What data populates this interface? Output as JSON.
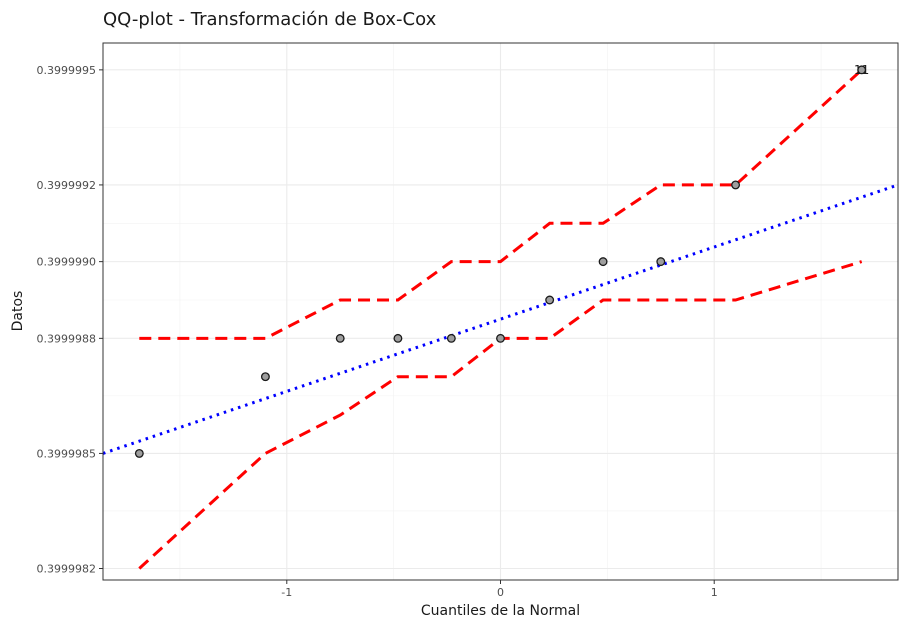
{
  "chart_data": {
    "type": "scatter",
    "title": "QQ-plot - Transformación de Box-Cox",
    "xlabel": "Cuantiles de la Normal",
    "ylabel": "Datos",
    "xlim": [
      -1.86,
      1.86
    ],
    "ylim": [
      0.39999817,
      0.39999957
    ],
    "x_ticks": [
      -1,
      0,
      1
    ],
    "x_tick_labels": [
      "-1",
      "0",
      "1"
    ],
    "y_ticks": [
      0.3999982,
      0.3999985,
      0.3999988,
      0.399999,
      0.3999992,
      0.3999995
    ],
    "y_tick_labels": [
      "0.3999982",
      "0.3999985",
      "0.3999988",
      "0.3999990",
      "0.3999992",
      "0.3999995"
    ],
    "grid": true,
    "points": {
      "x": [
        -1.69,
        -1.1,
        -0.75,
        -0.48,
        -0.23,
        0.0,
        0.23,
        0.48,
        0.75,
        1.1,
        1.69
      ],
      "y": [
        0.3999985,
        0.3999987,
        0.3999988,
        0.3999988,
        0.3999988,
        0.3999988,
        0.3999989,
        0.399999,
        0.399999,
        0.3999992,
        0.3999995
      ],
      "color": "#9e9e9e",
      "stroke": "#1a1a1a"
    },
    "reference_line": {
      "x": [
        -1.86,
        1.86
      ],
      "y": [
        0.3999985,
        0.3999992
      ],
      "color": "#0000ff",
      "style": "dotted"
    },
    "envelope_upper": {
      "x": [
        -1.69,
        -1.1,
        -0.75,
        -0.48,
        -0.23,
        0.0,
        0.23,
        0.48,
        0.75,
        1.1,
        1.69
      ],
      "y": [
        0.3999988,
        0.3999988,
        0.3999989,
        0.3999989,
        0.399999,
        0.399999,
        0.3999991,
        0.3999991,
        0.3999992,
        0.3999992,
        0.3999995
      ],
      "color": "#ff0000",
      "style": "dashed"
    },
    "envelope_lower": {
      "x": [
        -1.69,
        -1.1,
        -0.75,
        -0.48,
        -0.23,
        0.0,
        0.23,
        0.48,
        0.75,
        1.1,
        1.69
      ],
      "y": [
        0.3999982,
        0.3999985,
        0.3999986,
        0.3999987,
        0.3999987,
        0.3999988,
        0.3999988,
        0.3999989,
        0.3999989,
        0.3999989,
        0.399999
      ],
      "color": "#ff0000",
      "style": "dashed"
    },
    "annotations": [
      {
        "text": "11",
        "x": 1.69,
        "y": 0.3999995
      }
    ]
  }
}
